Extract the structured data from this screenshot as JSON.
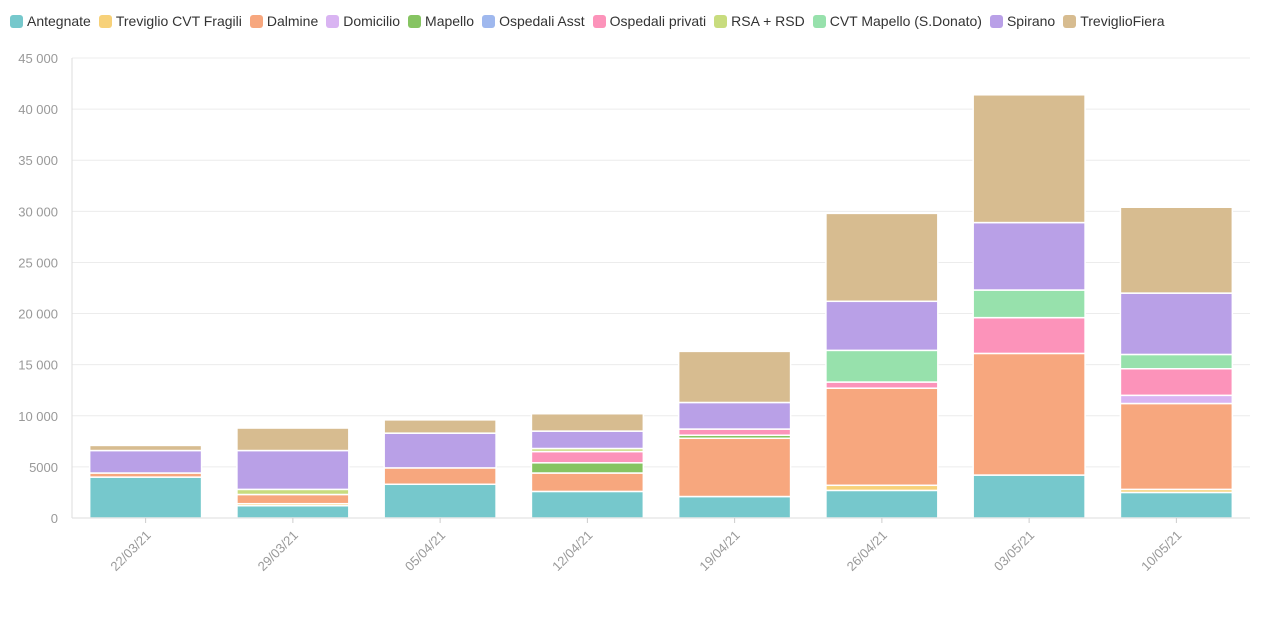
{
  "chart_data": {
    "type": "bar",
    "stacked": true,
    "title": "",
    "xlabel": "",
    "ylabel": "",
    "ylim": [
      0,
      45000
    ],
    "yticks": [
      0,
      5000,
      10000,
      15000,
      20000,
      25000,
      30000,
      35000,
      40000,
      45000
    ],
    "ytick_labels": [
      "0",
      "5000",
      "10 000",
      "15 000",
      "20 000",
      "25 000",
      "30 000",
      "35 000",
      "40 000",
      "45 000"
    ],
    "grid": true,
    "legend_position": "top",
    "categories": [
      "22/03/21",
      "29/03/21",
      "05/04/21",
      "12/04/21",
      "19/04/21",
      "26/04/21",
      "03/05/21",
      "10/05/21"
    ],
    "series": [
      {
        "name": "Antegnate",
        "color": "#76C8CC",
        "values": [
          4000,
          1200,
          3300,
          2600,
          2100,
          2700,
          4200,
          2500
        ]
      },
      {
        "name": "Treviglio CVT Fragili",
        "color": "#F7D179",
        "values": [
          0,
          200,
          0,
          0,
          0,
          500,
          0,
          300
        ]
      },
      {
        "name": "Dalmine",
        "color": "#F7A77E",
        "values": [
          400,
          900,
          1600,
          1800,
          5700,
          9500,
          11900,
          8400
        ]
      },
      {
        "name": "Domicilio",
        "color": "#D9B4F2",
        "values": [
          0,
          0,
          0,
          0,
          0,
          0,
          0,
          800
        ]
      },
      {
        "name": "Mapello",
        "color": "#86C462",
        "values": [
          0,
          0,
          0,
          1000,
          300,
          0,
          0,
          0
        ]
      },
      {
        "name": "Ospedali Asst",
        "color": "#9FB8EE",
        "values": [
          0,
          0,
          0,
          0,
          0,
          0,
          0,
          0
        ]
      },
      {
        "name": "Ospedali privati",
        "color": "#FC93BA",
        "values": [
          0,
          0,
          0,
          1100,
          600,
          600,
          3500,
          2600
        ]
      },
      {
        "name": "RSA + RSD",
        "color": "#C8DC7E",
        "values": [
          0,
          500,
          0,
          300,
          0,
          0,
          0,
          0
        ]
      },
      {
        "name": "CVT Mapello (S.Donato)",
        "color": "#97E1AC",
        "values": [
          0,
          0,
          0,
          0,
          0,
          3100,
          2700,
          1400
        ]
      },
      {
        "name": "Spirano",
        "color": "#B9A0E7",
        "values": [
          2200,
          3800,
          3400,
          1700,
          2600,
          4800,
          6600,
          6000
        ]
      },
      {
        "name": "TreviglioFiera",
        "color": "#D7BC90",
        "values": [
          500,
          2200,
          1300,
          1700,
          5000,
          8600,
          12500,
          8400
        ]
      }
    ]
  }
}
